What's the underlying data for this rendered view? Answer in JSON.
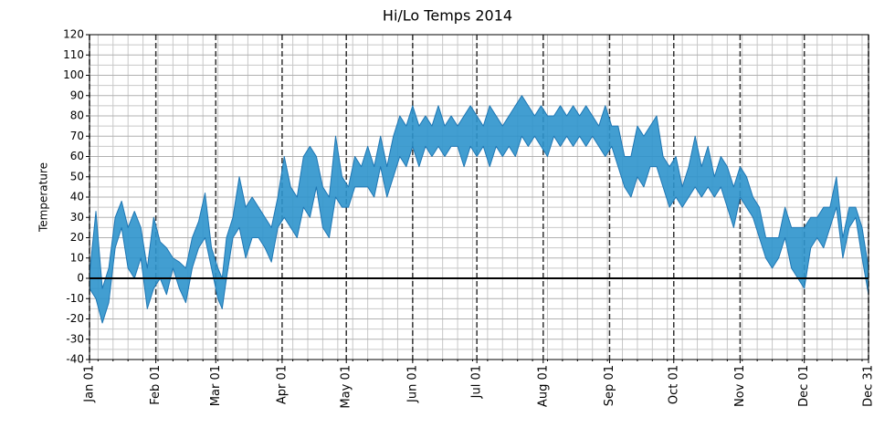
{
  "chart_data": {
    "type": "fill_between",
    "title": "Hi/Lo Temps 2014",
    "y_label": "Temperature",
    "x": [
      0,
      3,
      6,
      9,
      12,
      15,
      18,
      21,
      24,
      27,
      30,
      33,
      36,
      39,
      42,
      45,
      48,
      51,
      54,
      57,
      60,
      62,
      64,
      67,
      70,
      73,
      76,
      79,
      82,
      85,
      88,
      91,
      94,
      97,
      100,
      103,
      106,
      109,
      112,
      115,
      118,
      121,
      124,
      127,
      130,
      133,
      136,
      139,
      142,
      145,
      148,
      151,
      154,
      157,
      160,
      163,
      166,
      169,
      172,
      175,
      178,
      181,
      184,
      187,
      190,
      193,
      196,
      199,
      202,
      205,
      208,
      211,
      214,
      217,
      220,
      223,
      226,
      229,
      232,
      235,
      238,
      241,
      244,
      247,
      250,
      253,
      256,
      259,
      262,
      265,
      268,
      271,
      274,
      277,
      280,
      283,
      286,
      289,
      292,
      295,
      298,
      301,
      304,
      307,
      310,
      313,
      316,
      319,
      322,
      325,
      328,
      331,
      334,
      337,
      340,
      343,
      346,
      349,
      352,
      355,
      358,
      361,
      364
    ],
    "series": [
      {
        "values": [
          -5,
          -10,
          -22,
          -12,
          15,
          25,
          5,
          0,
          10,
          -15,
          -5,
          0,
          -8,
          5,
          -5,
          -12,
          5,
          15,
          20,
          5,
          -10,
          -15,
          0,
          20,
          25,
          10,
          20,
          20,
          15,
          8,
          25,
          30,
          25,
          20,
          35,
          30,
          45,
          25,
          20,
          40,
          35,
          35,
          45,
          45,
          45,
          40,
          55,
          40,
          50,
          60,
          55,
          65,
          55,
          65,
          60,
          65,
          60,
          65,
          65,
          55,
          65,
          60,
          65,
          55,
          65,
          60,
          65,
          60,
          70,
          65,
          70,
          65,
          60,
          70,
          65,
          70,
          65,
          70,
          65,
          70,
          65,
          60,
          65,
          55,
          45,
          40,
          50,
          45,
          55,
          55,
          45,
          35,
          40,
          35,
          40,
          45,
          40,
          45,
          40,
          45,
          35,
          25,
          40,
          35,
          30,
          20,
          10,
          5,
          10,
          20,
          5,
          0,
          -5,
          15,
          20,
          15,
          25,
          35,
          10,
          25,
          30,
          10,
          -8
        ]
      },
      {
        "values": [
          2,
          33,
          -5,
          5,
          30,
          38,
          25,
          33,
          25,
          5,
          30,
          18,
          15,
          10,
          8,
          5,
          20,
          28,
          42,
          15,
          5,
          0,
          20,
          30,
          50,
          35,
          40,
          35,
          30,
          25,
          40,
          60,
          45,
          40,
          60,
          65,
          60,
          45,
          40,
          70,
          50,
          45,
          60,
          55,
          65,
          55,
          70,
          55,
          70,
          80,
          75,
          85,
          75,
          80,
          75,
          85,
          75,
          80,
          75,
          80,
          85,
          80,
          75,
          85,
          80,
          75,
          80,
          85,
          90,
          85,
          80,
          85,
          80,
          80,
          85,
          80,
          85,
          80,
          85,
          80,
          75,
          85,
          75,
          75,
          60,
          60,
          75,
          70,
          75,
          80,
          60,
          55,
          60,
          45,
          55,
          70,
          55,
          65,
          50,
          60,
          55,
          45,
          55,
          50,
          40,
          35,
          20,
          20,
          20,
          35,
          25,
          25,
          25,
          30,
          30,
          35,
          35,
          50,
          20,
          35,
          35,
          25,
          5
        ]
      }
    ],
    "color": "#2e93cc",
    "edge_color": "#1f77b4",
    "xlim": [
      0,
      364
    ],
    "xticks": [
      {
        "value": 0,
        "label": "Jan 01"
      },
      {
        "value": 31,
        "label": "Feb 01"
      },
      {
        "value": 59,
        "label": "Mar 01"
      },
      {
        "value": 90,
        "label": "Apr 01"
      },
      {
        "value": 120,
        "label": "May 01"
      },
      {
        "value": 151,
        "label": "Jun 01"
      },
      {
        "value": 181,
        "label": "Jul 01"
      },
      {
        "value": 212,
        "label": "Aug 01"
      },
      {
        "value": 243,
        "label": "Sep 01"
      },
      {
        "value": 273,
        "label": "Oct 01"
      },
      {
        "value": 304,
        "label": "Nov 01"
      },
      {
        "value": 334,
        "label": "Dec 01"
      },
      {
        "value": 364,
        "label": "Dec 31"
      }
    ],
    "xminorticks": [
      4,
      11,
      18,
      25,
      32,
      39,
      46,
      53,
      60,
      67,
      74,
      81,
      88,
      95,
      102,
      109,
      116,
      123,
      130,
      137,
      144,
      151,
      158,
      165,
      172,
      179,
      186,
      193,
      200,
      207,
      214,
      221,
      228,
      235,
      242,
      249,
      256,
      263,
      270,
      277,
      284,
      291,
      298,
      305,
      312,
      319,
      326,
      333,
      340,
      347,
      354,
      361
    ],
    "ylim": [
      -40,
      120
    ],
    "yticks": [
      -40,
      -30,
      -20,
      -10,
      0,
      10,
      20,
      30,
      40,
      50,
      60,
      70,
      80,
      90,
      100,
      110,
      120
    ],
    "yminorticks": [
      -35,
      -25,
      -15,
      -5,
      5,
      15,
      25,
      35,
      45,
      55,
      65,
      75,
      85,
      95,
      105,
      115
    ],
    "hline": 0,
    "grid": true
  }
}
